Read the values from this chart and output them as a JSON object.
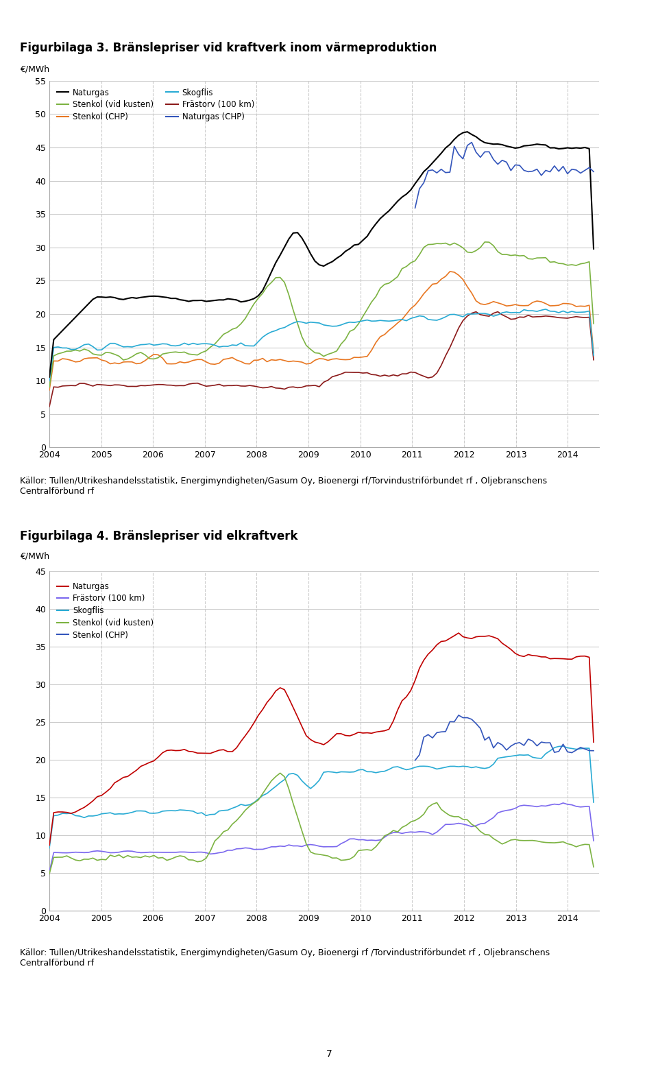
{
  "fig3_title": "Figurbilaga 3. Bränslepriser vid kraftverk inom värmeproduktion",
  "fig4_title": "Figurbilaga 4. Bränslepriser vid elkraftverk",
  "ylabel": "€/MWh",
  "fig3_caption": "Källor: Tullen/Utrikeshandelsstatistik, Energimyndigheten/Gasum Oy, Bioenergi rf/Torvindustriförbundet rf , Oljebranschens\nCentralförbund rf",
  "fig4_caption": "Källor: Tullen/Utrikeshandelsstatistik, Energimyndigheten/Gasum Oy, Bioenergi rf /Torvindustriförbundet rf , Oljebranschens\nCentralförbund rf",
  "fig3_ylim": [
    0,
    55
  ],
  "fig3_yticks": [
    0,
    5,
    10,
    15,
    20,
    25,
    30,
    35,
    40,
    45,
    50,
    55
  ],
  "fig4_ylim": [
    0,
    45
  ],
  "fig4_yticks": [
    0,
    5,
    10,
    15,
    20,
    25,
    30,
    35,
    40,
    45
  ],
  "xtick_years": [
    2004,
    2005,
    2006,
    2007,
    2008,
    2009,
    2010,
    2011,
    2012,
    2013,
    2014
  ],
  "colors": {
    "naturgas": "#000000",
    "stenkol_chp": "#E87722",
    "frastorv": "#8B1A1A",
    "stenkol_vid_kusten": "#7CB342",
    "skogflis": "#29ABD4",
    "naturgas_chp": "#3355BB",
    "naturgas_elk": "#C00000",
    "frastorv_elk": "#7B68EE",
    "skogflis_elk": "#29ABD4",
    "stenkol_vid_kusten_elk": "#7CB342",
    "stenkol_chp_elk": "#3355BB"
  },
  "background": "#ffffff",
  "grid_color": "#cccccc",
  "title_fontsize": 12,
  "axis_fontsize": 9,
  "caption_fontsize": 9
}
